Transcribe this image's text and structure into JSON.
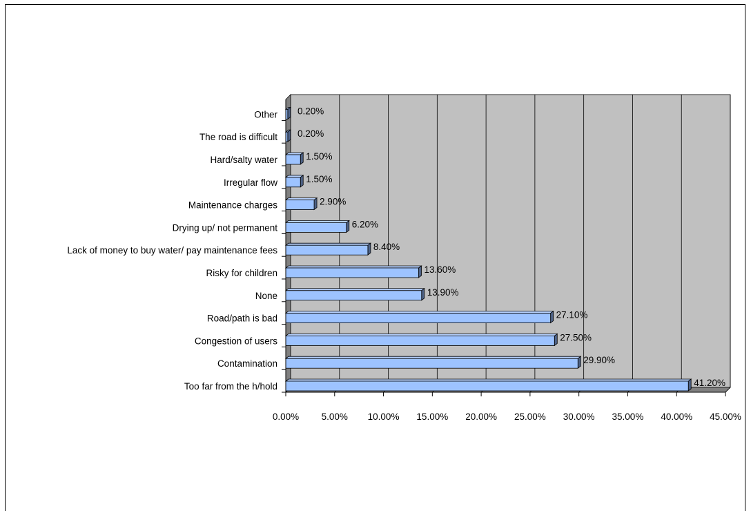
{
  "chart_data": {
    "type": "bar",
    "orientation": "horizontal",
    "categories": [
      "Too far from the h/hold",
      "Contamination",
      "Congestion of users",
      "Road/path is bad",
      "None",
      "Risky for children",
      "Lack of money to buy water/ pay maintenance fees",
      "Drying up/ not permanent",
      "Maintenance charges",
      "Irregular flow",
      "Hard/salty water",
      "The road is difficult",
      "Other"
    ],
    "values": [
      41.2,
      29.9,
      27.5,
      27.1,
      13.9,
      13.6,
      8.4,
      6.2,
      2.9,
      1.5,
      1.5,
      0.2,
      0.2
    ],
    "data_labels": [
      "41.20%",
      "29.90%",
      "27.50%",
      "27.10%",
      "13.90%",
      "13.60%",
      "8.40%",
      "6.20%",
      "2.90%",
      "1.50%",
      "1.50%",
      "0.20%",
      "0.20%"
    ],
    "x_ticks": [
      "0.00%",
      "5.00%",
      "10.00%",
      "15.00%",
      "20.00%",
      "25.00%",
      "30.00%",
      "35.00%",
      "40.00%",
      "45.00%"
    ],
    "xlim": [
      0,
      45
    ],
    "grid": true,
    "style": "3d",
    "colors": {
      "bar_fill": "#9DC3FF",
      "bar_side": "#4E6286",
      "bar_top": "#B7D2FF",
      "plot_wall": "#C0C0C0",
      "plot_floor": "#808080",
      "outline": "#000000"
    }
  }
}
